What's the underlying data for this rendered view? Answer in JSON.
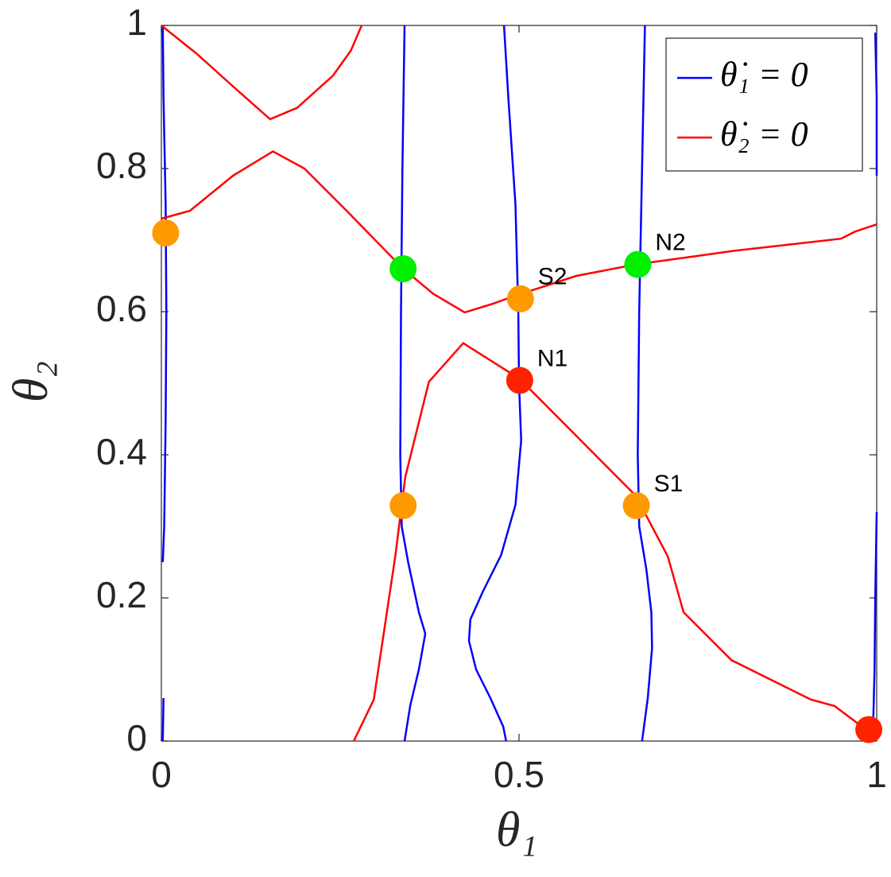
{
  "chart_data": {
    "type": "line",
    "xlabel": "θ₁",
    "ylabel": "θ₂",
    "xlim": [
      0,
      1
    ],
    "ylim": [
      0,
      1
    ],
    "xticks": [
      0,
      0.5,
      1
    ],
    "yticks": [
      0,
      0.2,
      0.4,
      0.6,
      0.8,
      1
    ],
    "legend": "top-right",
    "series": [
      {
        "name": "θ̇₁ = 0",
        "color": "#0000ff",
        "x": [
          0.002,
          0.004,
          0.006,
          0.007,
          0.006,
          0.003,
          0.002,
          null,
          0.002,
          0.003,
          null,
          0.34,
          0.337,
          0.335,
          0.334,
          0.336,
          0.345,
          0.36,
          0.369,
          0.36,
          0.348,
          0.34,
          null,
          0.479,
          0.485,
          0.495,
          0.499,
          0.5,
          0.503,
          0.495,
          0.475,
          0.45,
          0.432,
          0.43,
          0.44,
          0.46,
          0.478,
          0.482,
          null,
          0.676,
          0.672,
          0.668,
          0.666,
          0.668,
          0.678,
          0.685,
          0.686,
          0.68,
          0.672,
          null,
          0.998,
          1,
          1,
          null,
          1,
          0.998,
          0.997,
          0.995
        ],
        "values": [
          0.25,
          0.3,
          0.45,
          0.6,
          0.75,
          0.9,
          1,
          null,
          0,
          0.06,
          null,
          1,
          0.8,
          0.6,
          0.4,
          0.3,
          0.25,
          0.18,
          0.15,
          0.1,
          0.05,
          0,
          null,
          1,
          0.9,
          0.75,
          0.6,
          0.5,
          0.42,
          0.33,
          0.26,
          0.21,
          0.17,
          0.14,
          0.1,
          0.06,
          0.02,
          0,
          null,
          1,
          0.8,
          0.6,
          0.4,
          0.3,
          0.24,
          0.18,
          0.13,
          0.06,
          0,
          null,
          0.99,
          0.9,
          0.79,
          null,
          0.32,
          0.2,
          0.1,
          0.02
        ]
      },
      {
        "name": "θ̇₂ = 0",
        "color": "#ff0000",
        "x": [
          0,
          0.05,
          0.1,
          0.152,
          0.19,
          0.24,
          0.265,
          0.28,
          null,
          0,
          0.04,
          0.1,
          0.156,
          0.2,
          0.26,
          0.338,
          0.38,
          0.424,
          0.46,
          0.5,
          0.58,
          0.663,
          0.8,
          0.95,
          0.97,
          1,
          null,
          0.269,
          0.297,
          0.327,
          0.341,
          0.374,
          0.422,
          0.501,
          0.663,
          0.708,
          0.73,
          0.797,
          0.908,
          0.941,
          0.989
        ],
        "values": [
          1,
          0.96,
          0.915,
          0.869,
          0.885,
          0.93,
          0.965,
          1,
          null,
          0.73,
          0.741,
          0.79,
          0.824,
          0.8,
          0.74,
          0.66,
          0.625,
          0.599,
          0.61,
          0.624,
          0.65,
          0.666,
          0.685,
          0.702,
          0.712,
          0.722,
          null,
          0,
          0.058,
          0.258,
          0.369,
          0.502,
          0.556,
          0.506,
          0.343,
          0.258,
          0.18,
          0.113,
          0.058,
          0.049,
          0.013
        ]
      }
    ],
    "points": [
      {
        "x": 0.006,
        "y": 0.71,
        "color": "#ff9900"
      },
      {
        "x": 0.338,
        "y": 0.66,
        "color": "#00ee00"
      },
      {
        "x": 0.502,
        "y": 0.618,
        "color": "#ff9900",
        "label": "S2"
      },
      {
        "x": 0.501,
        "y": 0.504,
        "color": "#ff2200",
        "label": "N1"
      },
      {
        "x": 0.666,
        "y": 0.666,
        "color": "#00ee00",
        "label": "N2"
      },
      {
        "x": 0.338,
        "y": 0.329,
        "color": "#ff9900"
      },
      {
        "x": 0.664,
        "y": 0.329,
        "color": "#ff9900",
        "label": "S1"
      },
      {
        "x": 0.989,
        "y": 0.016,
        "color": "#ff2200"
      }
    ]
  }
}
